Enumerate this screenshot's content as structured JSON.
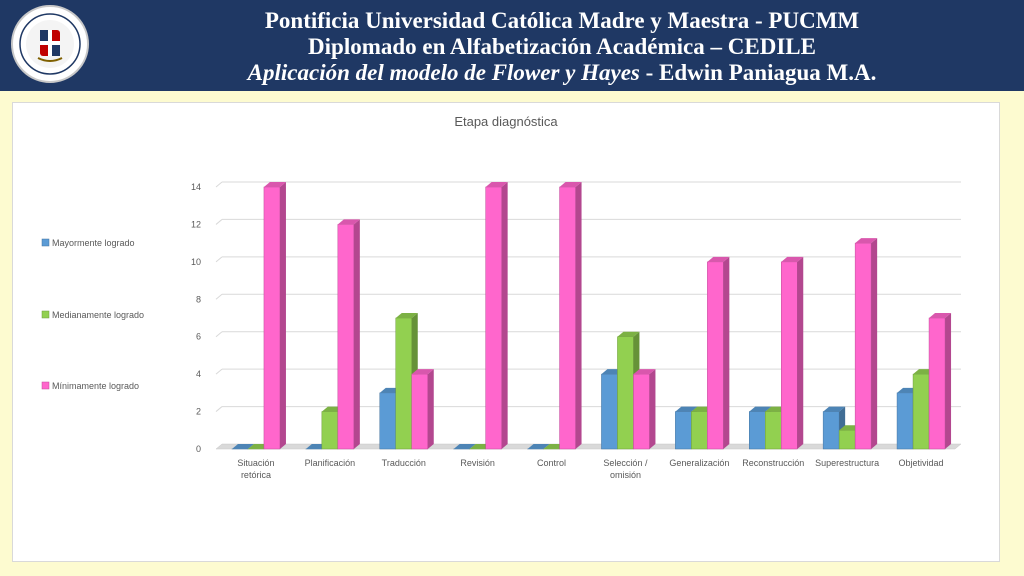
{
  "header": {
    "line1": "Pontificia Universidad Católica Madre y Maestra - PUCMM",
    "line2": "Diplomado en Alfabetización Académica – CEDILE",
    "line3_italic": "Aplicación del modelo de Flower y Hayes",
    "line3_rest": " - Edwin Paniagua M.A."
  },
  "colors": {
    "header_bg": "#1f3864",
    "page_bg": "#fdfbd0"
  },
  "chart_data": {
    "type": "bar",
    "title": "Etapa diagnóstica",
    "categories": [
      [
        "Situación",
        "retórica"
      ],
      [
        "Planificación"
      ],
      [
        "Traducción"
      ],
      [
        "Revisión"
      ],
      [
        "Control"
      ],
      [
        "Selección /",
        "omisión"
      ],
      [
        "Generalización"
      ],
      [
        "Reconstrucción"
      ],
      [
        "Superestructura"
      ],
      [
        "Objetividad"
      ]
    ],
    "series": [
      {
        "name": "Mayormente logrado",
        "color": "#5b9bd5",
        "values": [
          0,
          0,
          3,
          0,
          0,
          4,
          2,
          2,
          2,
          3
        ]
      },
      {
        "name": "Medianamente logrado",
        "color": "#92d050",
        "values": [
          0,
          2,
          7,
          0,
          0,
          6,
          2,
          2,
          1,
          4
        ]
      },
      {
        "name": "Mínimamente logrado",
        "color": "#ff66cc",
        "values": [
          14,
          12,
          4,
          14,
          14,
          4,
          10,
          10,
          11,
          7
        ]
      }
    ],
    "ylim": [
      0,
      14
    ],
    "yticks": [
      0,
      2,
      4,
      6,
      8,
      10,
      12,
      14
    ],
    "legend_position": "left",
    "grid": true,
    "style": "3d-bar"
  }
}
